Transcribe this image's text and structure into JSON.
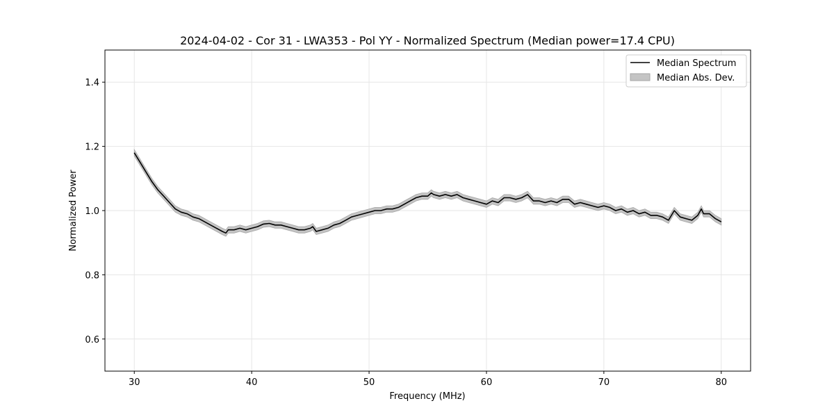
{
  "chart_data": {
    "type": "line",
    "title": "2024-04-02 - Cor 31 - LWA353 - Pol YY - Normalized Spectrum (Median power=17.4 CPU)",
    "xlabel": "Frequency (MHz)",
    "ylabel": "Normalized Power",
    "xlim": [
      27.5,
      82.5
    ],
    "ylim": [
      0.5,
      1.5
    ],
    "xticks": [
      30,
      40,
      50,
      60,
      70,
      80
    ],
    "xtick_labels": [
      "30",
      "40",
      "50",
      "60",
      "70",
      "80"
    ],
    "yticks": [
      0.6,
      0.8,
      1.0,
      1.2,
      1.4
    ],
    "ytick_labels": [
      "0.6",
      "0.8",
      "1.0",
      "1.2",
      "1.4"
    ],
    "grid": true,
    "legend_position": "top-right",
    "legend": [
      "Median Spectrum",
      "Median Abs. Dev."
    ],
    "series": [
      {
        "name": "Median Spectrum",
        "color": "#000000",
        "x": [
          30.0,
          30.5,
          31.0,
          31.5,
          32.0,
          32.5,
          33.0,
          33.5,
          34.0,
          34.5,
          35.0,
          35.5,
          36.0,
          36.5,
          37.0,
          37.5,
          37.8,
          38.0,
          38.5,
          39.0,
          39.5,
          40.0,
          40.5,
          41.0,
          41.5,
          42.0,
          42.5,
          43.0,
          43.5,
          44.0,
          44.5,
          45.0,
          45.2,
          45.5,
          46.0,
          46.5,
          47.0,
          47.5,
          48.0,
          48.5,
          49.0,
          49.5,
          50.0,
          50.5,
          51.0,
          51.5,
          52.0,
          52.5,
          53.0,
          53.5,
          54.0,
          54.5,
          55.0,
          55.3,
          55.5,
          56.0,
          56.5,
          57.0,
          57.5,
          58.0,
          58.5,
          59.0,
          59.5,
          60.0,
          60.5,
          61.0,
          61.5,
          62.0,
          62.5,
          63.0,
          63.5,
          64.0,
          64.5,
          65.0,
          65.5,
          66.0,
          66.5,
          67.0,
          67.5,
          68.0,
          68.5,
          69.0,
          69.5,
          70.0,
          70.5,
          71.0,
          71.5,
          72.0,
          72.5,
          73.0,
          73.5,
          74.0,
          74.5,
          75.0,
          75.5,
          76.0,
          76.5,
          77.0,
          77.5,
          78.0,
          78.3,
          78.5,
          79.0,
          79.5,
          80.0
        ],
        "values": [
          1.18,
          1.15,
          1.12,
          1.09,
          1.065,
          1.045,
          1.025,
          1.005,
          0.995,
          0.99,
          0.98,
          0.975,
          0.965,
          0.955,
          0.945,
          0.935,
          0.93,
          0.94,
          0.94,
          0.945,
          0.94,
          0.945,
          0.95,
          0.958,
          0.96,
          0.955,
          0.955,
          0.95,
          0.945,
          0.94,
          0.94,
          0.945,
          0.95,
          0.935,
          0.94,
          0.945,
          0.955,
          0.96,
          0.97,
          0.98,
          0.985,
          0.99,
          0.995,
          1.0,
          1.0,
          1.005,
          1.005,
          1.01,
          1.02,
          1.03,
          1.04,
          1.045,
          1.045,
          1.055,
          1.05,
          1.045,
          1.05,
          1.045,
          1.05,
          1.04,
          1.035,
          1.03,
          1.025,
          1.02,
          1.03,
          1.025,
          1.04,
          1.04,
          1.035,
          1.04,
          1.05,
          1.03,
          1.03,
          1.025,
          1.03,
          1.025,
          1.035,
          1.035,
          1.02,
          1.025,
          1.02,
          1.015,
          1.01,
          1.015,
          1.01,
          1.0,
          1.005,
          0.995,
          1.0,
          0.99,
          0.995,
          0.985,
          0.985,
          0.98,
          0.97,
          1.0,
          0.98,
          0.975,
          0.97,
          0.985,
          1.005,
          0.99,
          0.99,
          0.975,
          0.965
        ]
      }
    ],
    "band": {
      "name": "Median Abs. Dev.",
      "color": "#c4c4c4",
      "edge_color": "#a6a6a6",
      "half_width": 0.01
    }
  }
}
